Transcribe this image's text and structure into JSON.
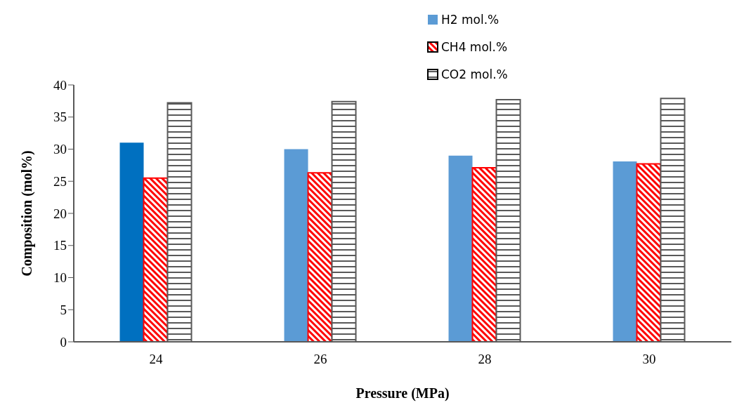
{
  "chart_data": {
    "type": "bar",
    "xlabel": "Pressure (MPa)",
    "ylabel": "Composition (mol%)",
    "categories": [
      "24",
      "26",
      "28",
      "30"
    ],
    "series": [
      {
        "name": "H2 mol.%",
        "color": "#5b9bd5",
        "colors": [
          "#0070c0",
          "#5b9bd5",
          "#5b9bd5",
          "#5b9bd5"
        ],
        "values": [
          31.0,
          30.0,
          29.0,
          28.1
        ]
      },
      {
        "name": "CH4 mol.%",
        "color": "#ff0000",
        "values": [
          25.5,
          26.3,
          27.1,
          27.7
        ]
      },
      {
        "name": "CO2 mol.%",
        "color": "#595959",
        "values": [
          37.2,
          37.4,
          37.7,
          37.9
        ]
      }
    ],
    "ylim": [
      0,
      40
    ],
    "yticks": [
      0,
      5,
      10,
      15,
      20,
      25,
      30,
      35,
      40
    ],
    "grid": false,
    "legend": "top"
  }
}
